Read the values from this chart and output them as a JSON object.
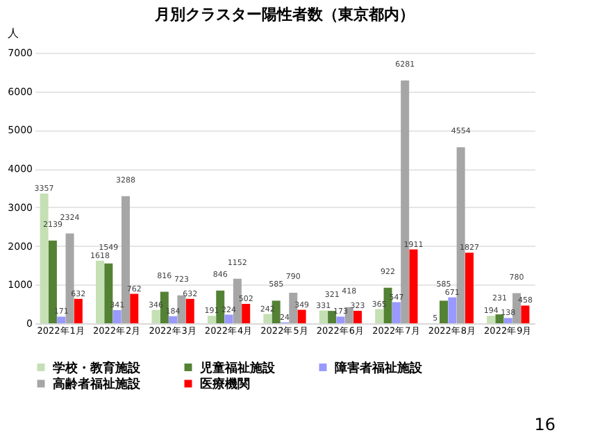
{
  "chart_data": {
    "type": "bar",
    "title": "月別クラスター陽性者数（東京都内）",
    "ylabel": "人",
    "categories": [
      "2022年1月",
      "2022年2月",
      "2022年3月",
      "2022年4月",
      "2022年5月",
      "2022年6月",
      "2022年7月",
      "2022年8月",
      "2022年9月"
    ],
    "series": [
      {
        "name": "学校・教育施設",
        "color": "#c5e0b4",
        "values": [
          3357,
          1618,
          346,
          191,
          242,
          331,
          365,
          5,
          194
        ]
      },
      {
        "name": "児童福祉施設",
        "color": "#548235",
        "values": [
          2139,
          1549,
          816,
          846,
          585,
          321,
          922,
          585,
          231
        ]
      },
      {
        "name": "障害者福祉施設",
        "color": "#9999ff",
        "values": [
          171,
          341,
          184,
          224,
          24,
          173,
          547,
          671,
          138
        ]
      },
      {
        "name": "高齢者福祉施設",
        "color": "#a6a6a6",
        "values": [
          2324,
          3288,
          723,
          1152,
          790,
          418,
          6281,
          4554,
          780
        ]
      },
      {
        "name": "医療機関",
        "color": "#ff0000",
        "values": [
          632,
          762,
          632,
          502,
          349,
          323,
          1911,
          1827,
          458
        ]
      }
    ],
    "ylim": [
      0,
      7000
    ],
    "yticks": [
      0,
      1000,
      2000,
      3000,
      4000,
      5000,
      6000,
      7000
    ],
    "grid": "y",
    "legend": "bottom",
    "data_labels": true,
    "annotations": [
      "16"
    ]
  }
}
